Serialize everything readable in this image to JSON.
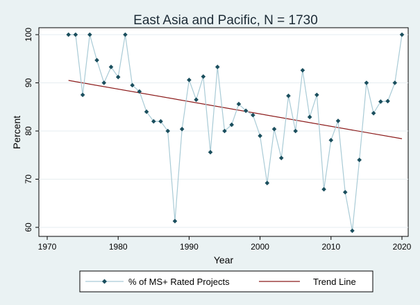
{
  "chart_data": {
    "type": "line",
    "title": "East Asia and Pacific, N = 1730",
    "xlabel": "Year",
    "ylabel": "Percent",
    "xlim": [
      1970,
      2020
    ],
    "ylim": [
      58,
      101
    ],
    "xticks": [
      1970,
      1980,
      1990,
      2000,
      2010,
      2020
    ],
    "yticks": [
      60,
      70,
      80,
      90,
      100
    ],
    "grid": "horizontal",
    "legend_placement": "bottom",
    "colors": {
      "background": "#eaf2f3",
      "plot_background": "#ffffff",
      "series_line": "#a9cbd6",
      "series_marker": "#1b4f5e",
      "trend": "#8b1a1a",
      "grid": "#e6eef0"
    },
    "series": [
      {
        "name": "% of MS+ Rated Projects",
        "x": [
          1973,
          1974,
          1975,
          1976,
          1977,
          1978,
          1979,
          1980,
          1981,
          1982,
          1983,
          1984,
          1985,
          1986,
          1987,
          1988,
          1989,
          1990,
          1991,
          1992,
          1993,
          1994,
          1995,
          1996,
          1997,
          1998,
          1999,
          2000,
          2001,
          2002,
          2003,
          2004,
          2005,
          2006,
          2007,
          2008,
          2009,
          2010,
          2011,
          2012,
          2013,
          2014,
          2015,
          2016,
          2017,
          2018,
          2019,
          2020
        ],
        "y": [
          100,
          100,
          87.5,
          100,
          94.7,
          90,
          93.3,
          91.2,
          100,
          89.5,
          88.2,
          84,
          82,
          82,
          80,
          61.3,
          80.4,
          90.6,
          86.5,
          91.3,
          75.6,
          93.3,
          80,
          81.3,
          85.6,
          84.2,
          83.3,
          79,
          69.2,
          80.4,
          74.4,
          87.3,
          80,
          92.6,
          82.9,
          87.5,
          67.9,
          78.1,
          82.1,
          67.3,
          59.3,
          74,
          90,
          83.7,
          86.1,
          86.2,
          90,
          100
        ]
      },
      {
        "name": "Trend Line",
        "x": [
          1973,
          2020
        ],
        "y": [
          90.5,
          78.4
        ]
      }
    ]
  }
}
